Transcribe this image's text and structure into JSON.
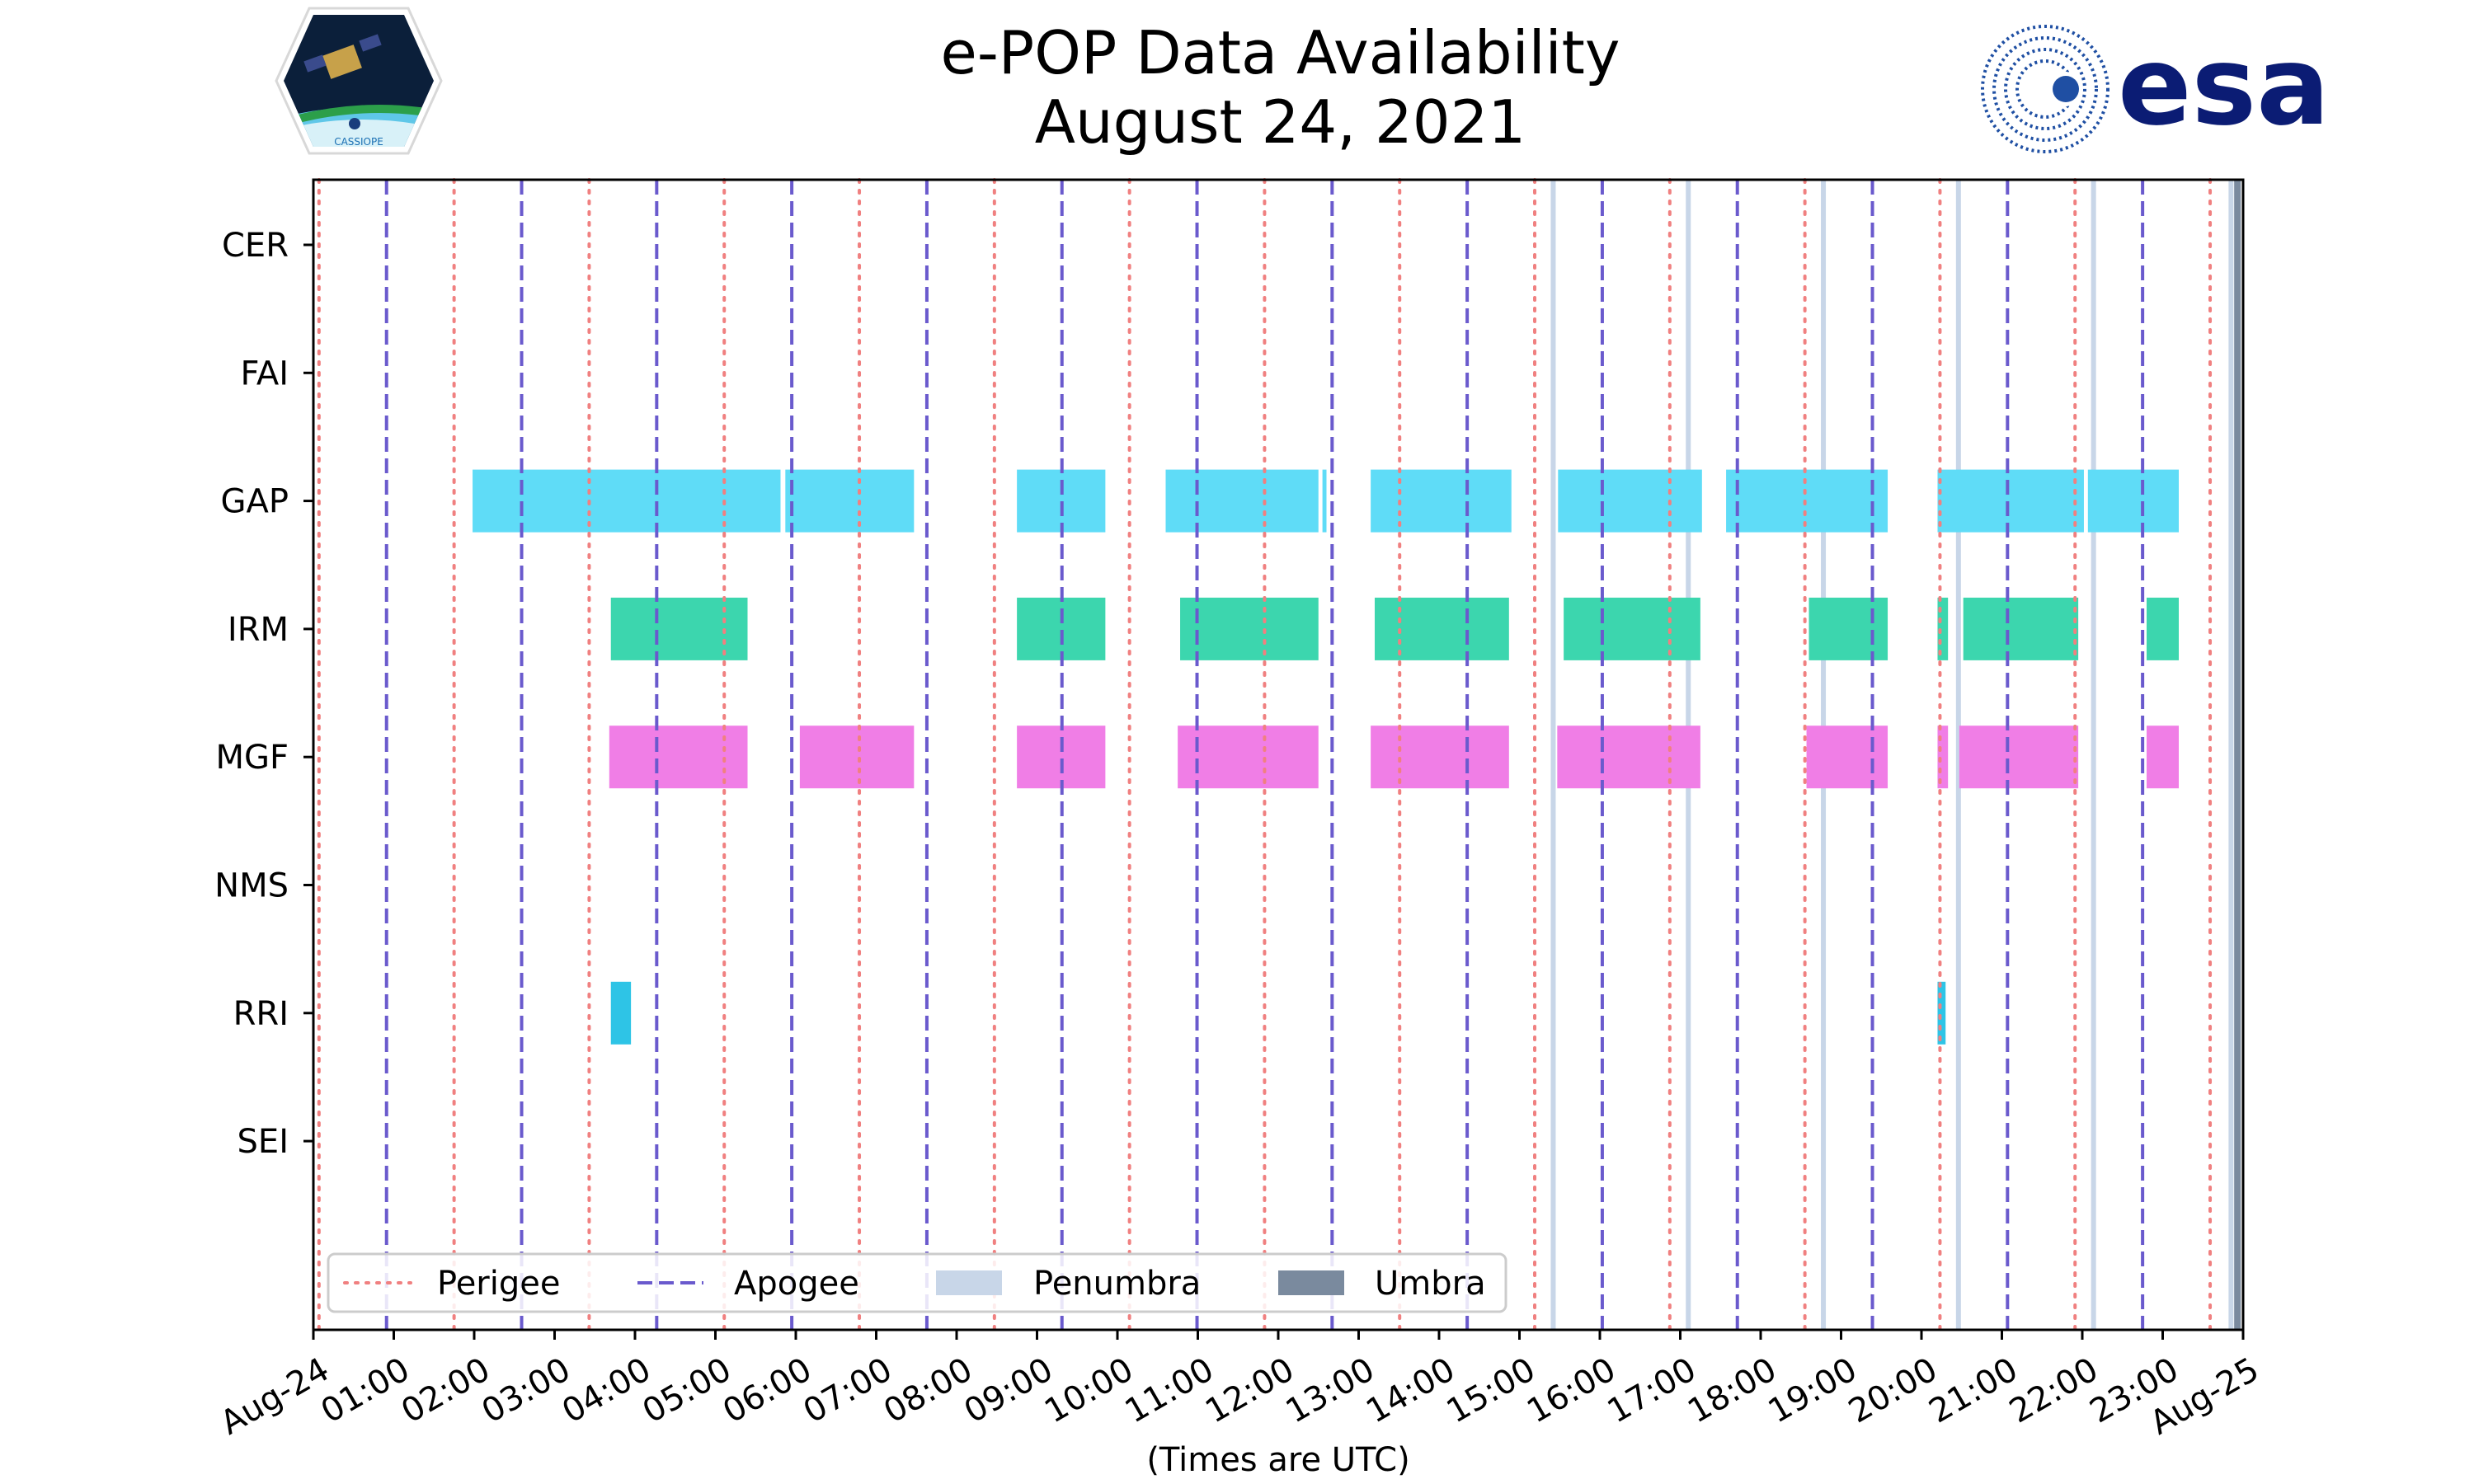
{
  "title_line1": "e-POP Data Availability",
  "title_line2": "August 24, 2021",
  "logos": {
    "left_logo_text": "CASSIOPE",
    "right_logo_text": "esa"
  },
  "colors": {
    "perigee": "#f08080",
    "apogee": "#6a5acd",
    "penumbra": "#c8d6e8",
    "umbra": "#7a8a9e",
    "GAP": "#5fdcf7",
    "IRM": "#3cd6ae",
    "MGF": "#f07ee6",
    "RRI": "#2ec4e6",
    "esa_blue": "#0b1c74"
  },
  "chart_data": {
    "type": "timeline",
    "title": "e-POP Data Availability\nAugust 24, 2021",
    "xlabel": "(Times are UTC)",
    "ylabel": "",
    "xlim_hours": [
      0,
      24
    ],
    "x_tick_labels": [
      "Aug-24",
      "01:00",
      "02:00",
      "03:00",
      "04:00",
      "05:00",
      "06:00",
      "07:00",
      "08:00",
      "09:00",
      "10:00",
      "11:00",
      "12:00",
      "13:00",
      "14:00",
      "15:00",
      "16:00",
      "17:00",
      "18:00",
      "19:00",
      "20:00",
      "21:00",
      "22:00",
      "23:00",
      "Aug-25"
    ],
    "instruments": [
      "CER",
      "FAI",
      "GAP",
      "IRM",
      "MGF",
      "NMS",
      "RRI",
      "SEI"
    ],
    "perigee_hours": [
      0.07,
      1.75,
      3.43,
      5.11,
      6.79,
      8.47,
      10.15,
      11.83,
      13.51,
      15.19,
      16.87,
      18.55,
      20.23,
      21.91,
      23.59
    ],
    "apogee_hours": [
      0.91,
      2.59,
      4.27,
      5.95,
      7.63,
      9.31,
      10.99,
      12.67,
      14.35,
      16.03,
      17.71,
      19.39,
      21.07,
      22.75
    ],
    "penumbra_hours": [
      15.42,
      17.1,
      18.78,
      20.46,
      22.14,
      23.85
    ],
    "umbra_hours": [
      23.93
    ],
    "availability": {
      "CER": [],
      "FAI": [],
      "GAP": [
        [
          1.98,
          5.81
        ],
        [
          5.87,
          7.47
        ],
        [
          8.75,
          9.85
        ],
        [
          10.6,
          12.5
        ],
        [
          12.55,
          12.6
        ],
        [
          13.15,
          14.9
        ],
        [
          15.48,
          17.27
        ],
        [
          17.57,
          19.58
        ],
        [
          20.2,
          22.02
        ],
        [
          22.07,
          23.2
        ]
      ],
      "IRM": [
        [
          3.7,
          5.4
        ],
        [
          8.75,
          9.85
        ],
        [
          10.78,
          12.5
        ],
        [
          13.2,
          14.87
        ],
        [
          15.55,
          17.25
        ],
        [
          18.6,
          19.58
        ],
        [
          20.2,
          20.33
        ],
        [
          20.52,
          21.95
        ],
        [
          22.8,
          23.2
        ]
      ],
      "MGF": [
        [
          3.68,
          5.4
        ],
        [
          6.05,
          7.47
        ],
        [
          8.75,
          9.85
        ],
        [
          10.75,
          12.5
        ],
        [
          13.15,
          14.87
        ],
        [
          15.47,
          17.25
        ],
        [
          18.57,
          19.58
        ],
        [
          20.2,
          20.33
        ],
        [
          20.47,
          21.95
        ],
        [
          22.8,
          23.2
        ]
      ],
      "NMS": [],
      "RRI": [
        [
          3.7,
          3.95
        ],
        [
          20.2,
          20.3
        ]
      ],
      "SEI": []
    },
    "legend": {
      "position": "lower-left",
      "entries": [
        "Perigee",
        "Apogee",
        "Penumbra",
        "Umbra"
      ]
    }
  }
}
